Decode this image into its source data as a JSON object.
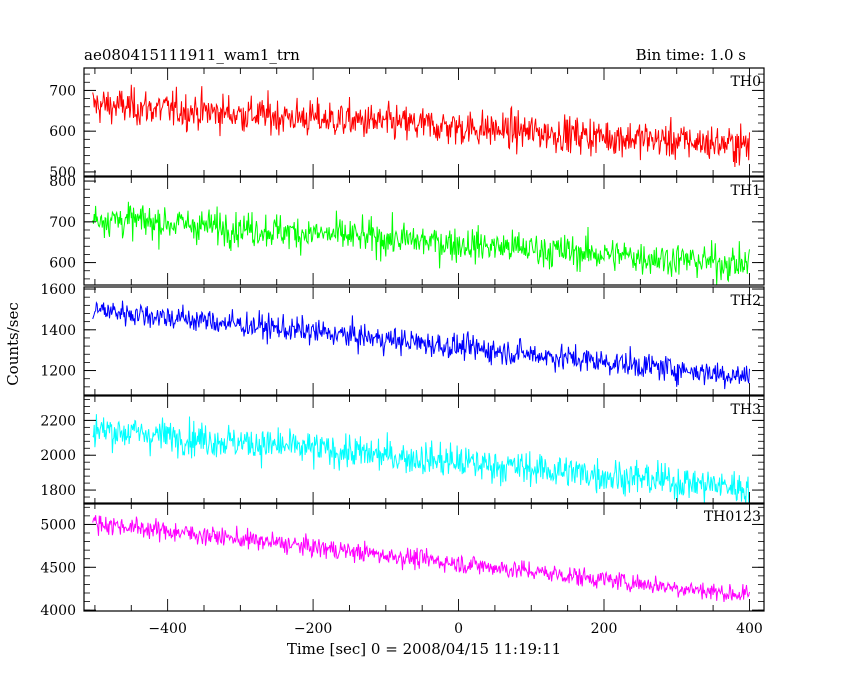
{
  "header": {
    "title": "ae080415111911_wam1_trn",
    "bin_time": "Bin time: 1.0 s"
  },
  "chart_data": {
    "type": "line",
    "xlabel": "Time [sec] 0 = 2008/04/15 11:19:11",
    "ylabel": "Counts/sec",
    "xlim": [
      -515,
      420
    ],
    "x_ticks": [
      -400,
      -200,
      0,
      200,
      400
    ],
    "x_tick_labels": [
      "−400",
      "−200",
      "0",
      "200",
      "400"
    ],
    "x_range": [
      -503,
      400
    ],
    "grid": false,
    "panels": [
      {
        "name": "TH0",
        "color": "#ff0000",
        "ylim": [
          490,
          755
        ],
        "y_ticks": [
          500,
          600,
          700
        ],
        "y_tick_labels": [
          "500",
          "600",
          "700"
        ],
        "trend_start": 665,
        "trend_end": 565,
        "noise": 30
      },
      {
        "name": "TH1",
        "color": "#00ff00",
        "ylim": [
          545,
          810
        ],
        "y_ticks": [
          600,
          700,
          800
        ],
        "y_tick_labels": [
          "600",
          "700",
          "800"
        ],
        "trend_start": 710,
        "trend_end": 595,
        "noise": 28
      },
      {
        "name": "TH2",
        "color": "#0000ff",
        "ylim": [
          1080,
          1610
        ],
        "y_ticks": [
          1200,
          1400,
          1600
        ],
        "y_tick_labels": [
          "1200",
          "1400",
          "1600"
        ],
        "trend_start": 1500,
        "trend_end": 1170,
        "noise": 42
      },
      {
        "name": "TH3",
        "color": "#00ffff",
        "ylim": [
          1720,
          2340
        ],
        "y_ticks": [
          1800,
          2000,
          2200
        ],
        "y_tick_labels": [
          "1800",
          "2000",
          "2200"
        ],
        "trend_start": 2150,
        "trend_end": 1810,
        "noise": 65
      },
      {
        "name": "TH0123",
        "color": "#ff00ff",
        "ylim": [
          3990,
          5250
        ],
        "y_ticks": [
          4000,
          4500,
          5000
        ],
        "y_tick_labels": [
          "4000",
          "4500",
          "5000"
        ],
        "trend_start": 5020,
        "trend_end": 4170,
        "noise": 75
      }
    ]
  }
}
